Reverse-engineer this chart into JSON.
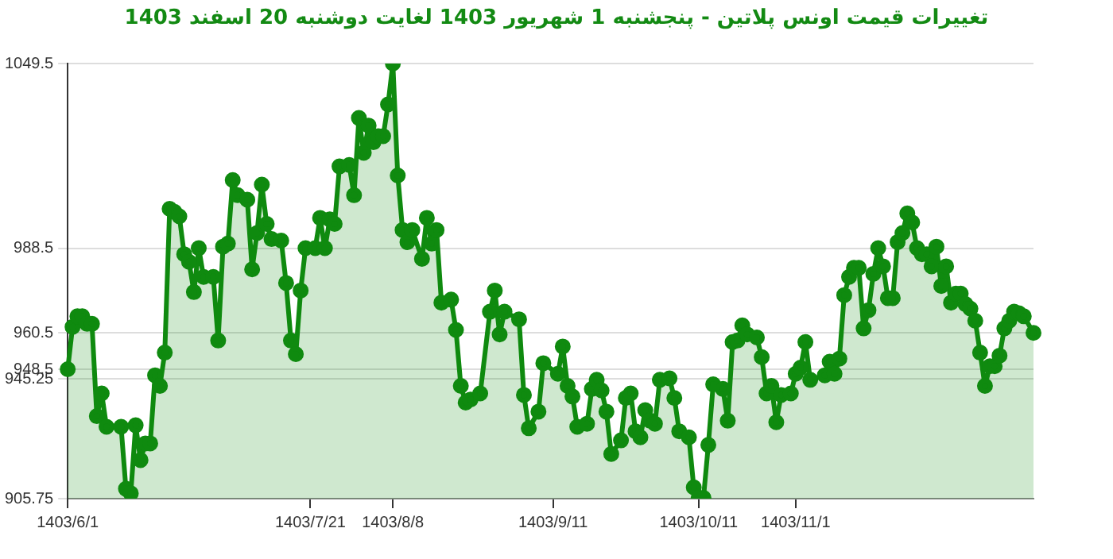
{
  "chart_data": {
    "type": "area",
    "title": "تغییرات قیمت اونس پلاتین - پنجشنبه  1 شهریور 1403 لغایت  دوشنبه  20 اسفند 1403",
    "categories": [
      "1403/6/1",
      null,
      null,
      null,
      null,
      null,
      null,
      null,
      null,
      null,
      null,
      null,
      null,
      null,
      null,
      null,
      null,
      null,
      null,
      null,
      null,
      null,
      null,
      null,
      null,
      null,
      null,
      null,
      null,
      null,
      null,
      null,
      null,
      null,
      null,
      null,
      null,
      null,
      null,
      null,
      null,
      null,
      null,
      null,
      null,
      null,
      null,
      null,
      null,
      null,
      "1403/7/21",
      null,
      null,
      null,
      null,
      null,
      null,
      null,
      null,
      null,
      null,
      null,
      null,
      null,
      null,
      null,
      null,
      "1403/8/8",
      null,
      null,
      null,
      null,
      null,
      null,
      null,
      null,
      null,
      null,
      null,
      null,
      null,
      null,
      null,
      null,
      null,
      null,
      null,
      null,
      null,
      null,
      null,
      null,
      null,
      null,
      null,
      null,
      null,
      null,
      null,
      null,
      "1403/9/11",
      null,
      null,
      null,
      null,
      null,
      null,
      null,
      null,
      null,
      null,
      null,
      null,
      null,
      null,
      null,
      null,
      null,
      null,
      null,
      null,
      null,
      null,
      null,
      null,
      null,
      null,
      null,
      null,
      null,
      "1403/10/11",
      null,
      null,
      null,
      null,
      null,
      null,
      null,
      null,
      null,
      null,
      null,
      null,
      null,
      null,
      null,
      null,
      null,
      null,
      null,
      "1403/11/1",
      null,
      null,
      null,
      null,
      null,
      null,
      null,
      null,
      null,
      null,
      null,
      null,
      null,
      null,
      null,
      null,
      null,
      null,
      null,
      null,
      null,
      null,
      null,
      null,
      null,
      null,
      null,
      null,
      null,
      null,
      null,
      null,
      null,
      null,
      null,
      null,
      null,
      null,
      null,
      null,
      null,
      null,
      null,
      null,
      null,
      null,
      null,
      null,
      null
    ],
    "series": [
      {
        "color": "#0f8a0f",
        "values": [
          948.5,
          962.5,
          966,
          966,
          963.5,
          963.5,
          933,
          940.5,
          929.5,
          null,
          null,
          929.5,
          909,
          907.5,
          930,
          918.5,
          924,
          924,
          946.5,
          943,
          954,
          1001.5,
          1000.5,
          999,
          986.5,
          984,
          974,
          988.5,
          979,
          null,
          979,
          958,
          989,
          990,
          1011,
          1006,
          null,
          1004.5,
          981.5,
          993.5,
          1009.5,
          996.5,
          991.5,
          null,
          991,
          977,
          958,
          953.5,
          974.5,
          988.5,
          null,
          988.5,
          998.5,
          988.5,
          998,
          996.5,
          1015.5,
          null,
          1016,
          1006,
          1031.5,
          1020,
          1029,
          1023.5,
          1025.5,
          1025.5,
          1036,
          1049.5,
          1012.5,
          994.5,
          990.5,
          994.5,
          null,
          985,
          998.5,
          990,
          994.5,
          970.5,
          null,
          971.5,
          961.5,
          943,
          937.5,
          938.5,
          null,
          940.5,
          null,
          967.5,
          974.5,
          960,
          967.5,
          null,
          null,
          965,
          940,
          929,
          null,
          934.5,
          950.5,
          null,
          null,
          947,
          956,
          943,
          939.5,
          929.5,
          null,
          930.5,
          942,
          945,
          941.5,
          934.5,
          920.5,
          null,
          925,
          939,
          940.5,
          928,
          926,
          935,
          931.5,
          930.5,
          945,
          null,
          945.5,
          939,
          928,
          null,
          926,
          909.5,
          906,
          906,
          923.5,
          943.5,
          null,
          942,
          931.5,
          957.5,
          958,
          963,
          960,
          null,
          959,
          952.5,
          940.5,
          943,
          931,
          940,
          null,
          940.5,
          947,
          949,
          957.5,
          945,
          null,
          null,
          946.5,
          951,
          947,
          952,
          973,
          979,
          982,
          982,
          962,
          968,
          980,
          988.5,
          982.5,
          972,
          972,
          990.5,
          993.5,
          1000,
          997,
          988.5,
          986.5,
          986.5,
          982.5,
          989,
          976,
          982.5,
          970.5,
          973.5,
          973.5,
          970,
          968.5,
          964.5,
          954,
          943,
          949.5,
          949.5,
          953,
          962,
          964.5,
          967.5,
          967,
          966,
          null,
          960.5
        ]
      }
    ],
    "ylim": [
      905.75,
      1049.5
    ],
    "yticks": [
      905.75,
      945.25,
      948.5,
      960.5,
      988.5,
      1049.5
    ],
    "grid": "y",
    "marker": "circle",
    "line_style": "solid"
  }
}
